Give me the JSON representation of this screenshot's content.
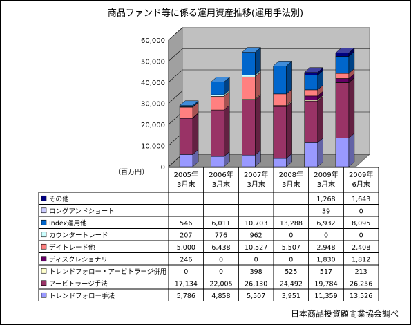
{
  "chart_data": {
    "type": "bar",
    "stacked": true,
    "three_d": true,
    "title": "商品ファンド等に係る運用資産推移(運用手法別)",
    "unit_label": "（百万円）",
    "source": "日本商品投資顧問業協会調べ",
    "ylim": [
      0,
      60000
    ],
    "yticks": [
      0,
      10000,
      20000,
      30000,
      40000,
      50000,
      60000
    ],
    "ytick_labels": [
      "0",
      "10,000",
      "20,000",
      "30,000",
      "40,000",
      "50,000",
      "60,000"
    ],
    "categories": [
      [
        "2005年",
        "3月末"
      ],
      [
        "2006年",
        "3月末"
      ],
      [
        "2007年",
        "3月末"
      ],
      [
        "2008年",
        "3月末"
      ],
      [
        "2009年",
        "3月末"
      ],
      [
        "2009年",
        "6月末"
      ]
    ],
    "series": [
      {
        "name": "トレンドフォロー手法",
        "color": "#9999ff",
        "values": [
          5786,
          4858,
          5507,
          3951,
          11359,
          13526
        ],
        "labels": [
          "5,786",
          "4,858",
          "5,507",
          "3,951",
          "11,359",
          "13,526"
        ]
      },
      {
        "name": "アービトラージ手法",
        "color": "#993366",
        "values": [
          17134,
          22005,
          26130,
          24492,
          19784,
          26256
        ],
        "labels": [
          "17,134",
          "22,005",
          "26,130",
          "24,492",
          "19,784",
          "26,256"
        ]
      },
      {
        "name": "トレンドフォロー・アービトラージ併用",
        "color": "#ffffcc",
        "values": [
          0,
          0,
          398,
          525,
          517,
          213
        ],
        "labels": [
          "0",
          "0",
          "398",
          "525",
          "517",
          "213"
        ]
      },
      {
        "name": "ディスクレショナリー",
        "color": "#660066",
        "values": [
          246,
          0,
          0,
          0,
          1830,
          1812
        ],
        "labels": [
          "246",
          "0",
          "0",
          "0",
          "1,830",
          "1,812"
        ]
      },
      {
        "name": "デイトレード他",
        "color": "#ff8080",
        "values": [
          5000,
          6438,
          10527,
          5507,
          2948,
          2408
        ],
        "labels": [
          "5,000",
          "6,438",
          "10,527",
          "5,507",
          "2,948",
          "2,408"
        ]
      },
      {
        "name": "カウンタートレード",
        "color": "#ccffff",
        "values": [
          207,
          776,
          962,
          0,
          0,
          0
        ],
        "labels": [
          "207",
          "776",
          "962",
          "0",
          "0",
          "0"
        ]
      },
      {
        "name": "Index運用他",
        "color": "#0066cc",
        "values": [
          546,
          6011,
          10703,
          13288,
          6932,
          8095
        ],
        "labels": [
          "546",
          "6,011",
          "10,703",
          "13,288",
          "6,932",
          "8,095"
        ]
      },
      {
        "name": "ロングアンドショート",
        "color": "#ccccff",
        "values": [
          null,
          null,
          null,
          null,
          39,
          0
        ],
        "labels": [
          "",
          "",
          "",
          "",
          "39",
          "0"
        ]
      },
      {
        "name": "その他",
        "color": "#000080",
        "values": [
          null,
          null,
          null,
          null,
          1268,
          1643
        ],
        "labels": [
          "",
          "",
          "",
          "",
          "1,268",
          "1,643"
        ]
      }
    ],
    "table_row_order": [
      "その他",
      "ロングアンドショート",
      "Index運用他",
      "カウンタートレード",
      "デイトレード他",
      "ディスクレショナリー",
      "トレンドフォロー・アービトラージ併用",
      "アービトラージ手法",
      "トレンドフォロー手法"
    ]
  }
}
